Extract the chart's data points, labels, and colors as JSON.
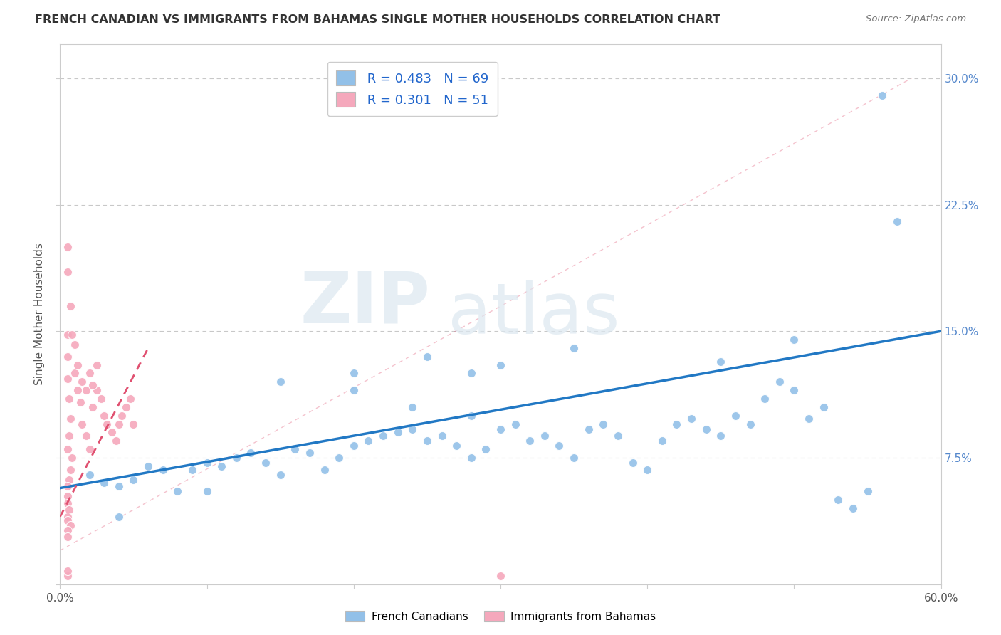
{
  "title": "FRENCH CANADIAN VS IMMIGRANTS FROM BAHAMAS SINGLE MOTHER HOUSEHOLDS CORRELATION CHART",
  "source": "Source: ZipAtlas.com",
  "ylabel": "Single Mother Households",
  "xlim": [
    0.0,
    0.6
  ],
  "ylim": [
    0.0,
    0.32
  ],
  "xticks": [
    0.0,
    0.1,
    0.2,
    0.3,
    0.4,
    0.5,
    0.6
  ],
  "yticks": [
    0.0,
    0.075,
    0.15,
    0.225,
    0.3
  ],
  "watermark_zip": "ZIP",
  "watermark_atlas": "atlas",
  "legend_R1": "R = 0.483",
  "legend_N1": "N = 69",
  "legend_R2": "R = 0.301",
  "legend_N2": "N = 51",
  "legend_label1": "French Canadians",
  "legend_label2": "Immigrants from Bahamas",
  "blue_color": "#92c0e8",
  "pink_color": "#f5a8bc",
  "blue_line_color": "#2178c4",
  "pink_line_color": "#e05070",
  "background_color": "#ffffff",
  "grid_color": "#c8c8c8",
  "blue_scatter": [
    [
      0.02,
      0.065
    ],
    [
      0.03,
      0.06
    ],
    [
      0.04,
      0.058
    ],
    [
      0.05,
      0.062
    ],
    [
      0.06,
      0.07
    ],
    [
      0.07,
      0.068
    ],
    [
      0.08,
      0.055
    ],
    [
      0.09,
      0.068
    ],
    [
      0.1,
      0.072
    ],
    [
      0.11,
      0.07
    ],
    [
      0.12,
      0.075
    ],
    [
      0.13,
      0.078
    ],
    [
      0.14,
      0.072
    ],
    [
      0.15,
      0.065
    ],
    [
      0.16,
      0.08
    ],
    [
      0.17,
      0.078
    ],
    [
      0.18,
      0.068
    ],
    [
      0.19,
      0.075
    ],
    [
      0.2,
      0.082
    ],
    [
      0.21,
      0.085
    ],
    [
      0.22,
      0.088
    ],
    [
      0.23,
      0.09
    ],
    [
      0.24,
      0.092
    ],
    [
      0.25,
      0.085
    ],
    [
      0.26,
      0.088
    ],
    [
      0.27,
      0.082
    ],
    [
      0.28,
      0.075
    ],
    [
      0.29,
      0.08
    ],
    [
      0.3,
      0.092
    ],
    [
      0.31,
      0.095
    ],
    [
      0.32,
      0.085
    ],
    [
      0.33,
      0.088
    ],
    [
      0.34,
      0.082
    ],
    [
      0.35,
      0.075
    ],
    [
      0.36,
      0.092
    ],
    [
      0.37,
      0.095
    ],
    [
      0.38,
      0.088
    ],
    [
      0.39,
      0.072
    ],
    [
      0.4,
      0.068
    ],
    [
      0.41,
      0.085
    ],
    [
      0.42,
      0.095
    ],
    [
      0.43,
      0.098
    ],
    [
      0.44,
      0.092
    ],
    [
      0.45,
      0.088
    ],
    [
      0.46,
      0.1
    ],
    [
      0.47,
      0.095
    ],
    [
      0.48,
      0.11
    ],
    [
      0.49,
      0.12
    ],
    [
      0.5,
      0.115
    ],
    [
      0.51,
      0.098
    ],
    [
      0.52,
      0.105
    ],
    [
      0.53,
      0.05
    ],
    [
      0.54,
      0.045
    ],
    [
      0.55,
      0.055
    ],
    [
      0.56,
      0.29
    ],
    [
      0.57,
      0.215
    ],
    [
      0.25,
      0.135
    ],
    [
      0.3,
      0.13
    ],
    [
      0.35,
      0.14
    ],
    [
      0.28,
      0.125
    ],
    [
      0.45,
      0.132
    ],
    [
      0.5,
      0.145
    ],
    [
      0.2,
      0.125
    ],
    [
      0.15,
      0.12
    ],
    [
      0.2,
      0.115
    ],
    [
      0.24,
      0.105
    ],
    [
      0.28,
      0.1
    ],
    [
      0.04,
      0.04
    ],
    [
      0.1,
      0.055
    ]
  ],
  "pink_scatter": [
    [
      0.005,
      0.2
    ],
    [
      0.005,
      0.185
    ],
    [
      0.007,
      0.165
    ],
    [
      0.005,
      0.148
    ],
    [
      0.005,
      0.135
    ],
    [
      0.005,
      0.122
    ],
    [
      0.006,
      0.11
    ],
    [
      0.007,
      0.098
    ],
    [
      0.006,
      0.088
    ],
    [
      0.005,
      0.08
    ],
    [
      0.008,
      0.075
    ],
    [
      0.007,
      0.068
    ],
    [
      0.006,
      0.062
    ],
    [
      0.005,
      0.058
    ],
    [
      0.005,
      0.052
    ],
    [
      0.005,
      0.048
    ],
    [
      0.006,
      0.044
    ],
    [
      0.005,
      0.04
    ],
    [
      0.005,
      0.038
    ],
    [
      0.007,
      0.035
    ],
    [
      0.005,
      0.032
    ],
    [
      0.005,
      0.028
    ],
    [
      0.01,
      0.125
    ],
    [
      0.012,
      0.115
    ],
    [
      0.014,
      0.108
    ],
    [
      0.015,
      0.095
    ],
    [
      0.018,
      0.088
    ],
    [
      0.02,
      0.08
    ],
    [
      0.022,
      0.105
    ],
    [
      0.025,
      0.115
    ],
    [
      0.028,
      0.11
    ],
    [
      0.03,
      0.1
    ],
    [
      0.032,
      0.095
    ],
    [
      0.035,
      0.09
    ],
    [
      0.038,
      0.085
    ],
    [
      0.04,
      0.095
    ],
    [
      0.042,
      0.1
    ],
    [
      0.045,
      0.105
    ],
    [
      0.048,
      0.11
    ],
    [
      0.05,
      0.095
    ],
    [
      0.012,
      0.13
    ],
    [
      0.015,
      0.12
    ],
    [
      0.02,
      0.125
    ],
    [
      0.025,
      0.13
    ],
    [
      0.008,
      0.148
    ],
    [
      0.01,
      0.142
    ],
    [
      0.018,
      0.115
    ],
    [
      0.022,
      0.118
    ],
    [
      0.005,
      0.005
    ],
    [
      0.3,
      0.005
    ],
    [
      0.005,
      0.008
    ]
  ],
  "blue_trendline": [
    [
      0.0,
      0.057
    ],
    [
      0.6,
      0.15
    ]
  ],
  "pink_trendline": [
    [
      0.0,
      0.04
    ],
    [
      0.06,
      0.14
    ]
  ]
}
